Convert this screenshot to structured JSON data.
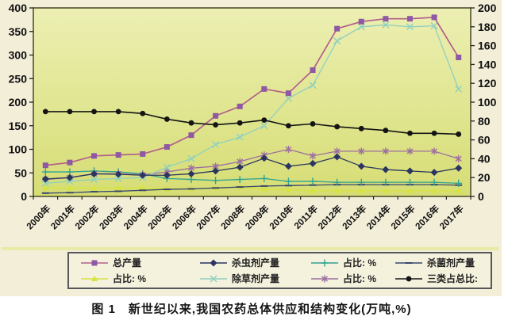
{
  "figure": {
    "caption": "图 1　新世纪以来,我国农药总体供应和结构变化(万吨,%)"
  },
  "chart_data": {
    "type": "line",
    "title": "",
    "xlabel": "",
    "ylabel_left": "万吨",
    "ylabel_right": "%",
    "left_axis": {
      "min": 0,
      "max": 400,
      "step": 50,
      "ticks": [
        "400",
        "350",
        "300",
        "250",
        "200",
        "150",
        "100",
        "50",
        "0"
      ]
    },
    "right_axis": {
      "min": 0,
      "max": 200,
      "step": 20,
      "ticks": [
        "200",
        "180",
        "160",
        "140",
        "120",
        "100",
        "80",
        "60",
        "40",
        "20",
        "0"
      ]
    },
    "categories": [
      "2000年",
      "2001年",
      "2002年",
      "2003年",
      "2004年",
      "2005年",
      "2006年",
      "2007年",
      "2008年",
      "2009年",
      "2010年",
      "2011年",
      "2012年",
      "2013年",
      "2014年",
      "2015年",
      "2016年",
      "2017年"
    ],
    "series": [
      {
        "name": "总产量",
        "axis": "left",
        "marker": "square",
        "color": "#b2608a",
        "marker_color": "#8e58a4",
        "values": [
          66,
          72,
          86,
          88,
          90,
          105,
          130,
          171,
          191,
          228,
          219,
          268,
          356,
          371,
          377,
          377,
          380,
          295
        ]
      },
      {
        "name": "占比: %",
        "axis": "right",
        "marker": "triangle",
        "color": "#d6e340",
        "marker_color": "#d6e340",
        "values": [
          9,
          9,
          9,
          9,
          9,
          8,
          8,
          9,
          10,
          8,
          7,
          6,
          6,
          6,
          6,
          6,
          6,
          6
        ]
      },
      {
        "name": "杀虫剂产量",
        "axis": "left",
        "marker": "diamond",
        "color": "#2b3560",
        "marker_color": "#2b3560",
        "values": [
          37,
          40,
          48,
          47,
          45,
          45,
          48,
          54,
          62,
          81,
          64,
          70,
          84,
          64,
          57,
          54,
          51,
          60
        ]
      },
      {
        "name": "除草剂产量",
        "axis": "right",
        "marker": "x",
        "color": "#8fd0bf",
        "marker_color": "#8fd0bf",
        "values": [
          14,
          16,
          18,
          19,
          20,
          31,
          40,
          55,
          63,
          75,
          104,
          118,
          165,
          180,
          182,
          180,
          181,
          114
        ]
      },
      {
        "name": "占比: %",
        "axis": "right",
        "marker": "plus",
        "color": "#2fa391",
        "marker_color": "#2fa391",
        "values": [
          26,
          26,
          27,
          26,
          24,
          19,
          18,
          17,
          18,
          19,
          16,
          16,
          15,
          15,
          15,
          15,
          15,
          14
        ]
      },
      {
        "name": "占比: %",
        "axis": "right",
        "marker": "asterisk",
        "color": "#9c6fa0",
        "marker_color": "#9c6fa0",
        "values": [
          18,
          20,
          24,
          24,
          23,
          26,
          30,
          32,
          37,
          44,
          50,
          43,
          48,
          48,
          48,
          48,
          48,
          40
        ]
      },
      {
        "name": "杀菌剂产量",
        "axis": "left",
        "marker": "dash",
        "color": "#37476e",
        "marker_color": "#37476e",
        "values": [
          7,
          8,
          10,
          11,
          13,
          15,
          16,
          18,
          20,
          22,
          23,
          24,
          25,
          25,
          25,
          25,
          25,
          24
        ]
      },
      {
        "name": "三类占总比:",
        "axis": "right",
        "marker": "circle",
        "color": "#141414",
        "marker_color": "#141414",
        "values": [
          90,
          90,
          90,
          90,
          88,
          82,
          78,
          76,
          78,
          81,
          75,
          77,
          74,
          72,
          70,
          67,
          67,
          66
        ]
      }
    ],
    "legend_order": [
      0,
      2,
      4,
      6,
      1,
      3,
      5,
      7
    ],
    "legend_position": "bottom",
    "grid": false
  }
}
